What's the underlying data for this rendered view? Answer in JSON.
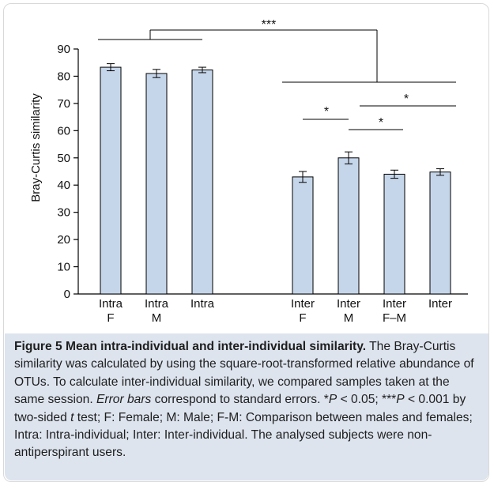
{
  "chart_data": {
    "type": "bar",
    "categories": [
      {
        "line1": "Intra",
        "line2": "F"
      },
      {
        "line1": "Intra",
        "line2": "M"
      },
      {
        "line1": "Intra",
        "line2": ""
      },
      {
        "line1": "Inter",
        "line2": "F"
      },
      {
        "line1": "Inter",
        "line2": "M"
      },
      {
        "line1": "Inter",
        "line2": "F–M"
      },
      {
        "line1": "Inter",
        "line2": ""
      }
    ],
    "values": [
      83.3,
      81.0,
      82.3,
      43.0,
      50.0,
      44.0,
      44.8
    ],
    "errors": [
      1.3,
      1.5,
      1.0,
      2.0,
      2.2,
      1.5,
      1.2
    ],
    "ylabel": "Bray-Curtis similarity",
    "ylim": [
      0,
      90
    ],
    "yticks": [
      0,
      10,
      20,
      30,
      40,
      50,
      60,
      70,
      80,
      90
    ],
    "bar_color": "#c6d6ea",
    "significance": [
      {
        "label": "***",
        "between": "groups 1–3 vs groups 4–7"
      },
      {
        "label": "*",
        "between": "Inter F vs Inter M"
      },
      {
        "label": "*",
        "between": "Inter M vs Inter F–M"
      },
      {
        "label": "*",
        "between": "Inter M vs Inter"
      }
    ]
  },
  "caption": {
    "title": "Figure 5 Mean intra-individual and inter-individual similarity.",
    "text_a": " The Bray-Curtis similarity was calculated by using the square-root-transformed relative abundance of OTUs. To calculate inter-individual similarity, we compared samples taken at the same session. ",
    "error_bars": "Error bars",
    "text_b": " correspond to standard errors. *",
    "p1": "P",
    "text_c": " < 0.05; ***",
    "p2": "P",
    "text_d": " < 0.001 by two-sided ",
    "t": "t",
    "text_e": " test; F: Female; M: Male; F-M: Comparison between males and females; Intra: Intra-individual; Inter: Inter-individual. The analysed subjects were non-antiperspirant users."
  }
}
